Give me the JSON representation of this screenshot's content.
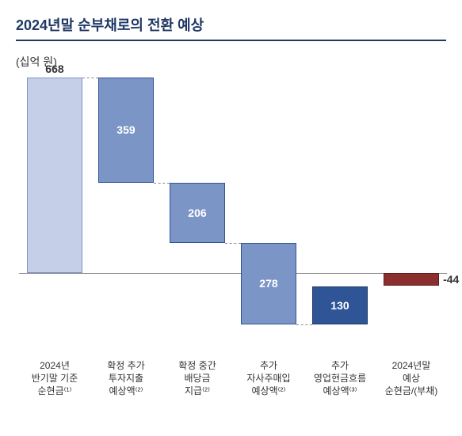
{
  "title": "2024년말 순부채로의 전환 예상",
  "unit_label": "(십억 원)",
  "chart": {
    "type": "waterfall",
    "value_max": 668,
    "value_min": -278,
    "colors": {
      "light_blue": "#c5cfe8",
      "mid_blue": "#7b95c6",
      "dark_blue": "#2f5597",
      "negative_red": "#8b2e2e",
      "border": "#2f5597",
      "dash": "#888888"
    },
    "bars": [
      {
        "label_lines": [
          "2024년",
          "반기말 기준",
          "순현금⁽¹⁾"
        ],
        "value": 668,
        "value_label": "668",
        "value_label_pos": "top",
        "value_label_color": "#333333",
        "start": 0,
        "end": 668,
        "fill": "#c5cfe8",
        "border": "#7b95c6"
      },
      {
        "label_lines": [
          "확정 추가",
          "투자지출",
          "예상액⁽²⁾"
        ],
        "value": -359,
        "value_label": "359",
        "value_label_pos": "middle",
        "value_label_color": "#ffffff",
        "start": 668,
        "end": 309,
        "fill": "#7b95c6",
        "border": "#2f5597"
      },
      {
        "label_lines": [
          "확정 중간",
          "배당금",
          "지급⁽²⁾"
        ],
        "value": -206,
        "value_label": "206",
        "value_label_pos": "middle",
        "value_label_color": "#ffffff",
        "start": 309,
        "end": 103,
        "fill": "#7b95c6",
        "border": "#2f5597"
      },
      {
        "label_lines": [
          "추가",
          "자사주매입",
          "예상액⁽²⁾"
        ],
        "value": -278,
        "value_label": "278",
        "value_label_pos": "middle",
        "value_label_color": "#ffffff",
        "start": 103,
        "end": -175,
        "fill": "#7b95c6",
        "border": "#2f5597"
      },
      {
        "label_lines": [
          "추가",
          "영업현금흐름",
          "예상액⁽³⁾"
        ],
        "value": 130,
        "value_label": "130",
        "value_label_pos": "middle",
        "value_label_color": "#ffffff",
        "start": -175,
        "end": -45,
        "fill": "#2f5597",
        "border": "#1f3864"
      },
      {
        "label_lines": [
          "2024년말",
          "예상",
          "순현금/(부채)"
        ],
        "value": -44,
        "value_label": "-44",
        "value_label_pos": "right",
        "value_label_color": "#333333",
        "start": 0,
        "end": -44,
        "fill": "#8b2e2e",
        "border": "#5a1f1f"
      }
    ]
  }
}
